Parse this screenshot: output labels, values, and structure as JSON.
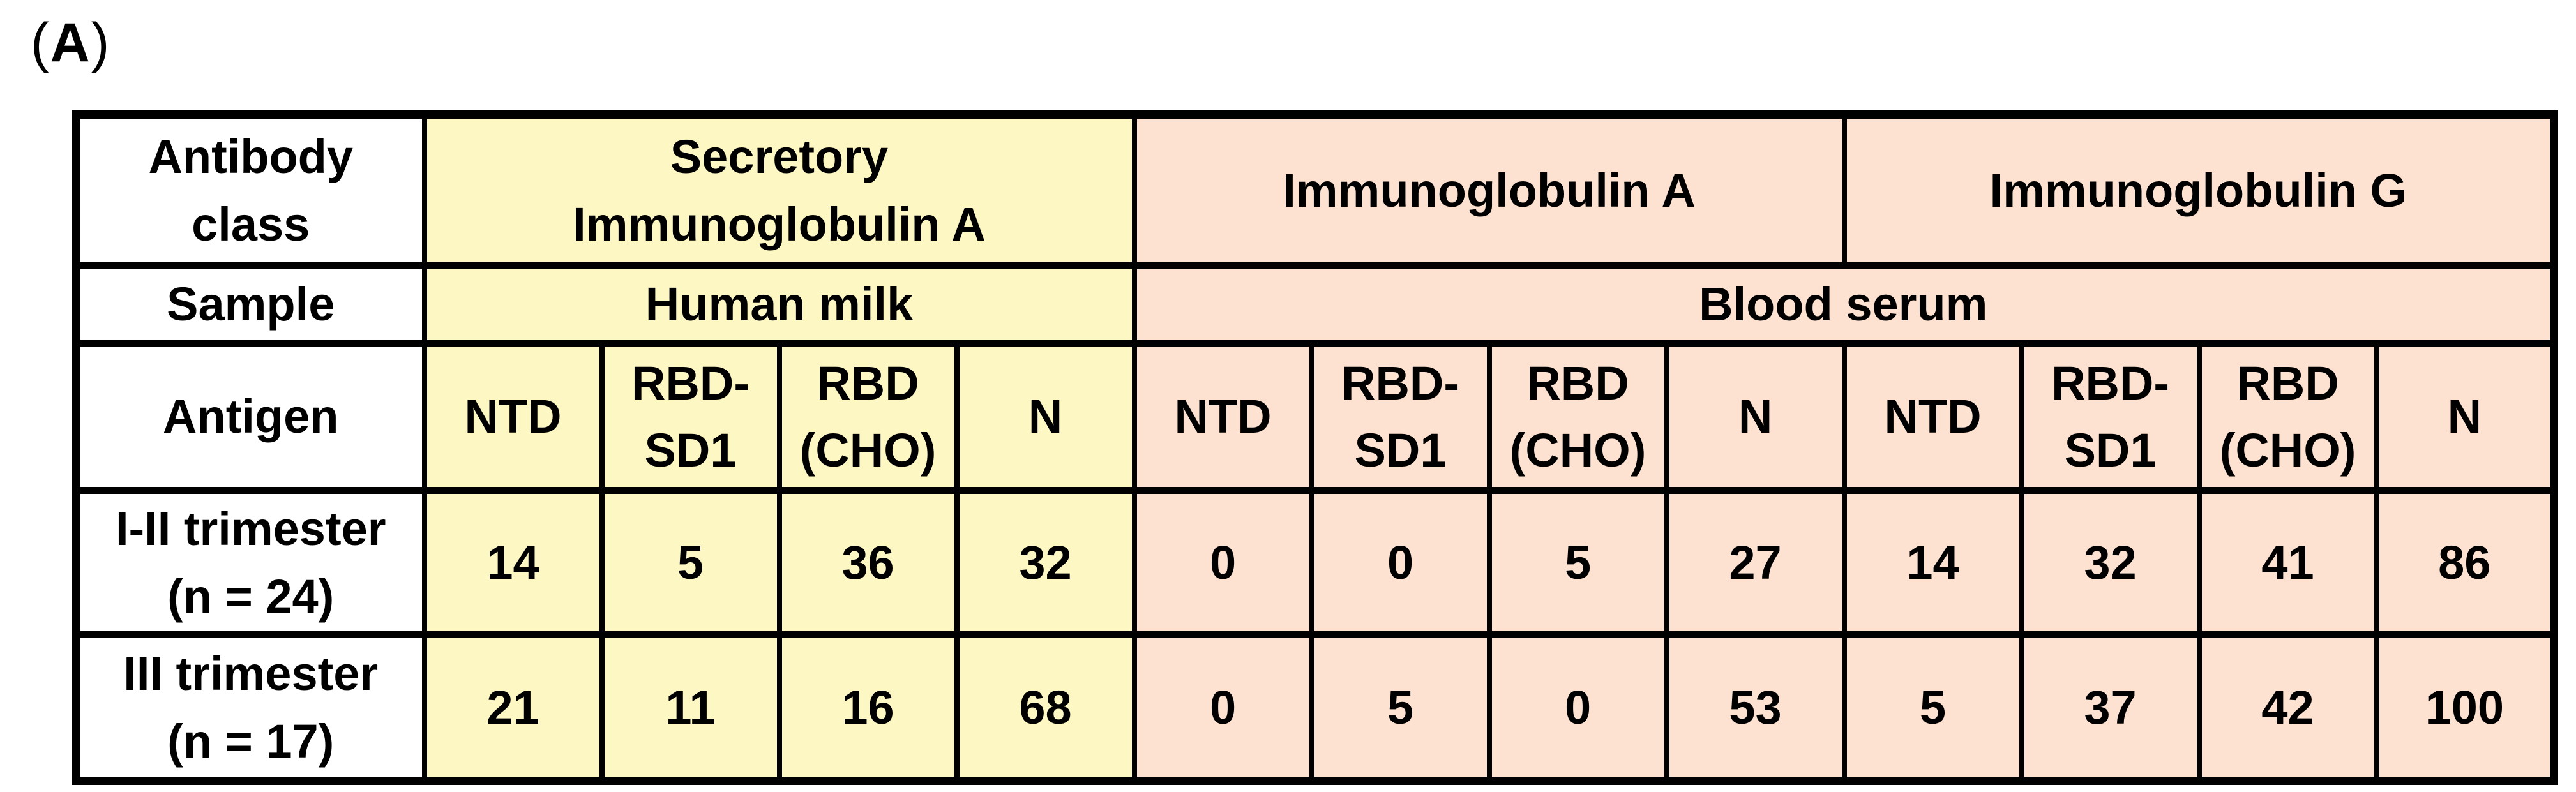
{
  "panel": {
    "open": "(",
    "letter": "A",
    "close": ")"
  },
  "colors": {
    "milk_fill": "#FDF7C4",
    "serum_fill": "#FDE2D1",
    "border": "#000000",
    "text": "#000000",
    "page_bg": "#FFFFFF"
  },
  "table": {
    "rows": {
      "antibody": {
        "label_lines": [
          "Antibody",
          "class"
        ],
        "sections": [
          {
            "lines": [
              "Secretory",
              "Immunoglobulin A"
            ]
          },
          {
            "lines": [
              "Immunoglobulin A"
            ]
          },
          {
            "lines": [
              "Immunoglobulin G"
            ]
          }
        ]
      },
      "sample": {
        "label": "Sample",
        "cells": [
          {
            "text": "Human milk"
          },
          {
            "text": "Blood serum"
          }
        ]
      },
      "antigen": {
        "label": "Antigen",
        "cells": [
          {
            "lines": [
              "NTD"
            ]
          },
          {
            "lines": [
              "RBD-",
              "SD1"
            ]
          },
          {
            "lines": [
              "RBD",
              "(CHO)"
            ]
          },
          {
            "lines": [
              "N"
            ]
          },
          {
            "lines": [
              "NTD"
            ]
          },
          {
            "lines": [
              "RBD-",
              "SD1"
            ]
          },
          {
            "lines": [
              "RBD",
              "(CHO)"
            ]
          },
          {
            "lines": [
              "N"
            ]
          },
          {
            "lines": [
              "NTD"
            ]
          },
          {
            "lines": [
              "RBD-",
              "SD1"
            ]
          },
          {
            "lines": [
              "RBD",
              "(CHO)"
            ]
          },
          {
            "lines": [
              "N"
            ]
          }
        ]
      },
      "data": [
        {
          "label_lines": [
            "I-II trimester",
            "(n = 24)"
          ],
          "values": [
            "14",
            "5",
            "36",
            "32",
            "0",
            "0",
            "5",
            "27",
            "14",
            "32",
            "41",
            "86"
          ]
        },
        {
          "label_lines": [
            "III trimester",
            "(n = 17)"
          ],
          "values": [
            "21",
            "11",
            "16",
            "68",
            "0",
            "5",
            "0",
            "53",
            "5",
            "37",
            "42",
            "100"
          ]
        }
      ]
    }
  },
  "chart_data": {
    "type": "table",
    "column_groups": [
      {
        "antibody_class": "Secretory Immunoglobulin A",
        "sample": "Human milk",
        "antigens": [
          "NTD",
          "RBD-SD1",
          "RBD (CHO)",
          "N"
        ]
      },
      {
        "antibody_class": "Immunoglobulin A",
        "sample": "Blood serum",
        "antigens": [
          "NTD",
          "RBD-SD1",
          "RBD (CHO)",
          "N"
        ]
      },
      {
        "antibody_class": "Immunoglobulin G",
        "sample": "Blood serum",
        "antigens": [
          "NTD",
          "RBD-SD1",
          "RBD (CHO)",
          "N"
        ]
      }
    ],
    "rows": [
      {
        "group": "I-II trimester (n = 24)",
        "values": [
          14,
          5,
          36,
          32,
          0,
          0,
          5,
          27,
          14,
          32,
          41,
          86
        ]
      },
      {
        "group": "III trimester (n = 17)",
        "values": [
          21,
          11,
          16,
          68,
          0,
          5,
          0,
          53,
          5,
          37,
          42,
          100
        ]
      }
    ]
  }
}
